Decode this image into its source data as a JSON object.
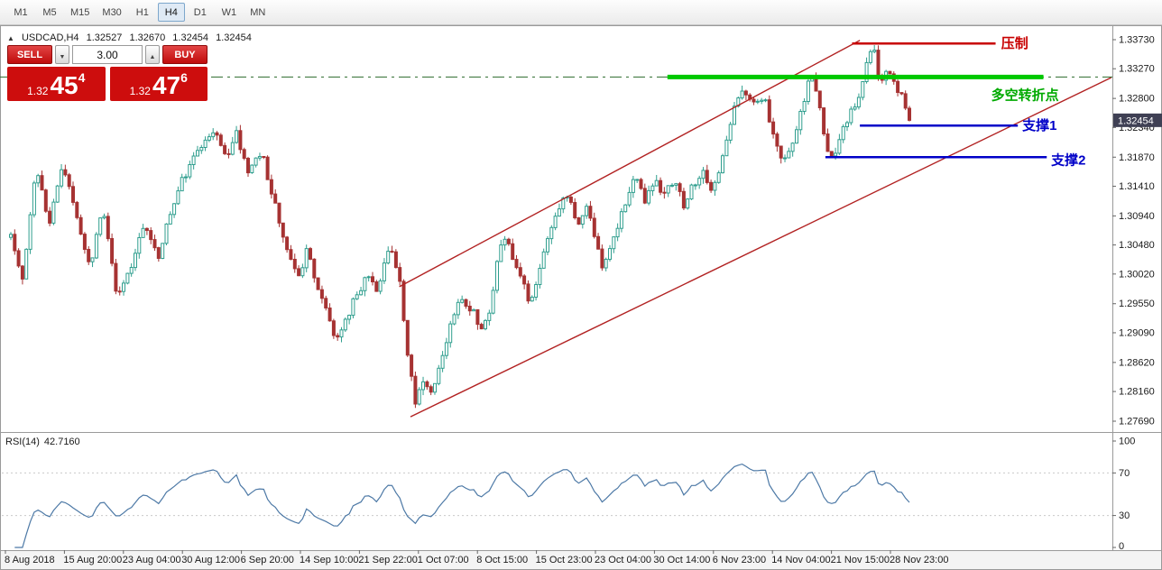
{
  "toolbar": {
    "timeframes": [
      "M1",
      "M5",
      "M15",
      "M30",
      "H1",
      "H4",
      "D1",
      "W1",
      "MN"
    ],
    "active": "H4"
  },
  "chart": {
    "symbol_info": {
      "collapse_icon": "▲",
      "symbol": "USDCAD,H4",
      "open": "1.32527",
      "high": "1.32670",
      "low": "1.32454",
      "close": "1.32454"
    },
    "trade_panel": {
      "sell_label": "SELL",
      "buy_label": "BUY",
      "lot": "3.00",
      "sell_price_prefix": "1.32",
      "sell_price_big": "45",
      "sell_price_sup": "4",
      "buy_price_prefix": "1.32",
      "buy_price_big": "47",
      "buy_price_sup": "6"
    }
  },
  "chart_data": {
    "type": "candlestick",
    "symbol": "USDCAD",
    "timeframe": "H4",
    "current_price": 1.32454,
    "current_price_label": "1.32454",
    "price_axis": [
      "1.33730",
      "1.33270",
      "1.32800",
      "1.32340",
      "1.31870",
      "1.31410",
      "1.30940",
      "1.30480",
      "1.30020",
      "1.29550",
      "1.29090",
      "1.28620",
      "1.28160",
      "1.27690"
    ],
    "time_axis": [
      "8 Aug 2018",
      "15 Aug 20:00",
      "23 Aug 04:00",
      "30 Aug 12:00",
      "6 Sep 20:00",
      "14 Sep 10:00",
      "21 Sep 22:00",
      "1 Oct 07:00",
      "8 Oct 15:00",
      "15 Oct 23:00",
      "23 Oct 04:00",
      "30 Oct 14:00",
      "6 Nov 23:00",
      "14 Nov 04:00",
      "21 Nov 15:00",
      "28 Nov 23:00"
    ],
    "colors": {
      "bull": "#2f9e8e",
      "bear": "#a63232",
      "channel": "#b22222",
      "pivot_dash": "#2d6b2d"
    },
    "num_candles": 232,
    "candles_waypoints": [
      [
        0,
        1.306
      ],
      [
        0.013,
        1.2995
      ],
      [
        0.028,
        1.317
      ],
      [
        0.043,
        1.3085
      ],
      [
        0.058,
        1.3175
      ],
      [
        0.073,
        1.309
      ],
      [
        0.088,
        1.3015
      ],
      [
        0.103,
        1.3105
      ],
      [
        0.118,
        1.2968
      ],
      [
        0.134,
        1.3015
      ],
      [
        0.149,
        1.308
      ],
      [
        0.164,
        1.303
      ],
      [
        0.179,
        1.311
      ],
      [
        0.194,
        1.316
      ],
      [
        0.211,
        1.3205
      ],
      [
        0.227,
        1.323
      ],
      [
        0.241,
        1.319
      ],
      [
        0.251,
        1.3225
      ],
      [
        0.265,
        1.316
      ],
      [
        0.279,
        1.32
      ],
      [
        0.291,
        1.3125
      ],
      [
        0.304,
        1.306
      ],
      [
        0.319,
        1.299
      ],
      [
        0.329,
        1.304
      ],
      [
        0.341,
        1.2985
      ],
      [
        0.354,
        1.293
      ],
      [
        0.362,
        1.29
      ],
      [
        0.372,
        1.293
      ],
      [
        0.384,
        1.2965
      ],
      [
        0.397,
        1.3005
      ],
      [
        0.408,
        1.2965
      ],
      [
        0.422,
        1.3055
      ],
      [
        0.432,
        1.2995
      ],
      [
        0.442,
        1.287
      ],
      [
        0.45,
        1.28
      ],
      [
        0.458,
        1.284
      ],
      [
        0.468,
        1.2815
      ],
      [
        0.48,
        1.2875
      ],
      [
        0.492,
        1.2935
      ],
      [
        0.502,
        1.2965
      ],
      [
        0.514,
        1.2945
      ],
      [
        0.523,
        1.2908
      ],
      [
        0.533,
        1.2935
      ],
      [
        0.543,
        1.305
      ],
      [
        0.55,
        1.3062
      ],
      [
        0.56,
        1.302
      ],
      [
        0.57,
        1.299
      ],
      [
        0.578,
        1.2952
      ],
      [
        0.588,
        1.3005
      ],
      [
        0.6,
        1.3065
      ],
      [
        0.612,
        1.3115
      ],
      [
        0.62,
        1.313
      ],
      [
        0.63,
        1.308
      ],
      [
        0.641,
        1.3105
      ],
      [
        0.651,
        1.306
      ],
      [
        0.659,
        1.301
      ],
      [
        0.671,
        1.3065
      ],
      [
        0.683,
        1.311
      ],
      [
        0.694,
        1.316
      ],
      [
        0.706,
        1.312
      ],
      [
        0.718,
        1.3145
      ],
      [
        0.728,
        1.3128
      ],
      [
        0.739,
        1.3155
      ],
      [
        0.748,
        1.311
      ],
      [
        0.759,
        1.314
      ],
      [
        0.769,
        1.3168
      ],
      [
        0.779,
        1.3135
      ],
      [
        0.789,
        1.3165
      ],
      [
        0.799,
        1.3235
      ],
      [
        0.809,
        1.328
      ],
      [
        0.819,
        1.329
      ],
      [
        0.829,
        1.3265
      ],
      [
        0.839,
        1.3285
      ],
      [
        0.849,
        1.3215
      ],
      [
        0.859,
        1.318
      ],
      [
        0.869,
        1.32
      ],
      [
        0.879,
        1.3255
      ],
      [
        0.89,
        1.332
      ],
      [
        0.898,
        1.329
      ],
      [
        0.908,
        1.32
      ],
      [
        0.916,
        1.3185
      ],
      [
        0.926,
        1.323
      ],
      [
        0.936,
        1.3265
      ],
      [
        0.946,
        1.329
      ],
      [
        0.954,
        1.3345
      ],
      [
        0.96,
        1.336
      ],
      [
        0.968,
        1.33
      ],
      [
        0.976,
        1.333
      ],
      [
        0.984,
        1.3305
      ],
      [
        0.992,
        1.328
      ],
      [
        1,
        1.32454
      ]
    ],
    "annotations": [
      {
        "id": "pivot-dashdot-line",
        "type": "hline-dashdot",
        "price": 1.3314,
        "x_from": 0,
        "x_to": 1,
        "color": "#2d6b2d"
      },
      {
        "id": "pivot-line",
        "type": "hline-thick",
        "price": 1.3314,
        "x_from": 0.6,
        "x_to": 0.938,
        "color": "#00c800",
        "label": "多空转折点",
        "label_x": 0.891,
        "label_dy": 25,
        "label_color": "#00aa00"
      },
      {
        "id": "resistance-line",
        "type": "hline",
        "price": 1.3367,
        "x_from": 0.766,
        "x_to": 0.895,
        "color": "#c80000",
        "width": 2.5,
        "label": "压制",
        "label_x": 0.9,
        "label_dy": 5,
        "label_color": "#c80000"
      },
      {
        "id": "support1-line",
        "type": "hline",
        "price": 1.3237,
        "x_from": 0.773,
        "x_to": 0.915,
        "color": "#0000c8",
        "width": 2.5,
        "label": "支撑1",
        "label_x": 0.919,
        "label_dy": 5,
        "label_color": "#0000c8"
      },
      {
        "id": "support2-line",
        "type": "hline",
        "price": 1.3187,
        "x_from": 0.742,
        "x_to": 0.941,
        "color": "#0000c8",
        "width": 2.5,
        "label": "支撑2",
        "label_x": 0.945,
        "label_dy": 8,
        "label_color": "#0000c8"
      }
    ],
    "channel": {
      "color": "#b22222",
      "lower": {
        "x1": 0.369,
        "p1": 1.2776,
        "x2": 0.999,
        "p2": 1.3313
      },
      "upper": {
        "x1": 0.359,
        "p1": 1.2982,
        "x2": 0.773,
        "p2": 1.3372
      }
    },
    "rsi": {
      "label": "RSI(14)",
      "value": "42.7160",
      "period": 14,
      "levels": [
        "100",
        "70",
        "30",
        "0"
      ],
      "color": "#4d79a6"
    }
  }
}
